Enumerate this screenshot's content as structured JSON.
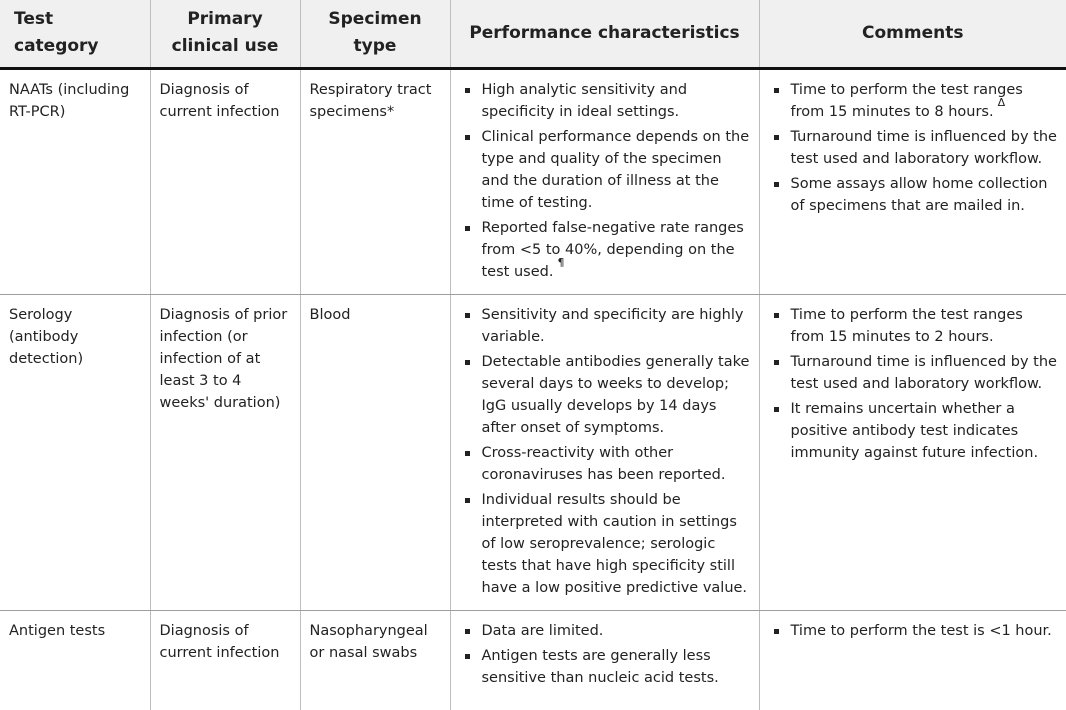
{
  "headers": [
    "Test category",
    "Primary clinical use",
    "Specimen type",
    "Performance characteristics",
    "Comments"
  ],
  "rows": [
    {
      "category": "NAATs (including RT-PCR)",
      "use": "Diagnosis of current infection",
      "specimen": "Respiratory tract specimens*",
      "performance": [
        "High analytic sensitivity and specificity in ideal settings.",
        "Clinical performance depends on the type and quality of the specimen and the duration of illness at the time of testing.",
        "Reported false-negative rate ranges from <5 to 40%, depending on the test used."
      ],
      "performance_mark": "¶",
      "comments": [
        "Time to perform the test ranges from 15 minutes to 8 hours.",
        "Turnaround time is influenced by the test used and laboratory workflow.",
        "Some assays allow home collection of specimens that are mailed in."
      ],
      "comments_mark": "Δ"
    },
    {
      "category": "Serology (antibody detection)",
      "use": "Diagnosis of prior infection (or infection of at least 3 to 4 weeks' duration)",
      "specimen": "Blood",
      "performance": [
        "Sensitivity and specificity are highly variable.",
        "Detectable antibodies generally take several days to weeks to develop; IgG usually develops by 14 days after onset of symptoms.",
        "Cross-reactivity with other coronaviruses has been reported.",
        "Individual results should be interpreted with caution in settings of low seroprevalence; serologic tests that have high specificity still have a low positive predictive value."
      ],
      "comments": [
        "Time to perform the test ranges from 15 minutes to 2 hours.",
        "Turnaround time is influenced by the test used and laboratory workflow.",
        "It remains uncertain whether a positive antibody test indicates immunity against future infection."
      ]
    },
    {
      "category": "Antigen tests",
      "use": "Diagnosis of current infection",
      "specimen": "Nasopharyngeal or nasal swabs",
      "performance": [
        "Data are limited.",
        "Antigen tests are generally less sensitive than nucleic acid tests."
      ],
      "comments": [
        "Time to perform the test is <1 hour."
      ]
    }
  ]
}
